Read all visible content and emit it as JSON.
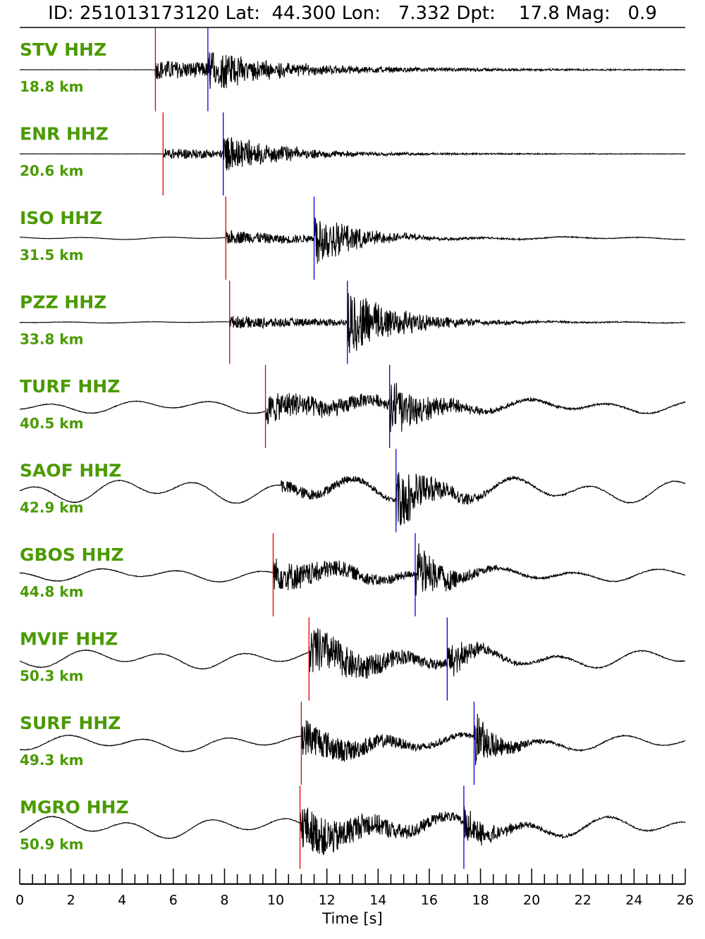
{
  "header": {
    "title": "ID: 251013173120 Lat:  44.300 Lon:   7.332 Dpt:    17.8 Mag:   0.9"
  },
  "chart_data": {
    "type": "line",
    "title": "ID: 251013173120 Lat:  44.300 Lon:   7.332 Dpt:    17.8 Mag:   0.9",
    "event": {
      "id": "251013173120",
      "lat": 44.3,
      "lon": 7.332,
      "depth": 17.8,
      "magnitude": 0.9
    },
    "xlabel": "Time [s]",
    "xlim": [
      0,
      26
    ],
    "x_ticks": [
      0,
      2,
      4,
      6,
      8,
      10,
      12,
      14,
      16,
      18,
      20,
      22,
      24,
      26
    ],
    "x_minor_step": 0.5,
    "p_pick_color": "#e00000",
    "s_pick_color": "#0000e0",
    "label_color": "#4a9a00",
    "series": [
      {
        "name": "STV HHZ",
        "distance": "18.8 km",
        "p_pick": 5.3,
        "s_pick": 7.35
      },
      {
        "name": "ENR HHZ",
        "distance": "20.6 km",
        "p_pick": 5.6,
        "s_pick": 7.95
      },
      {
        "name": "ISO HHZ",
        "distance": "31.5 km",
        "p_pick": 8.05,
        "s_pick": 11.5
      },
      {
        "name": "PZZ HHZ",
        "distance": "33.8 km",
        "p_pick": 8.2,
        "s_pick": 12.8
      },
      {
        "name": "TURF HHZ",
        "distance": "40.5 km",
        "p_pick": 9.6,
        "s_pick": 14.45
      },
      {
        "name": "SAOF HHZ",
        "distance": "42.9 km",
        "p_pick": null,
        "s_pick": 14.7
      },
      {
        "name": "GBOS HHZ",
        "distance": "44.8 km",
        "p_pick": 9.9,
        "s_pick": 15.45
      },
      {
        "name": "MVIF HHZ",
        "distance": "50.3 km",
        "p_pick": 11.3,
        "s_pick": 16.7
      },
      {
        "name": "SURF HHZ",
        "distance": "49.3 km",
        "p_pick": 11.0,
        "s_pick": 17.75
      },
      {
        "name": "MGRO HHZ",
        "distance": "50.9 km",
        "p_pick": 10.95,
        "s_pick": 17.35
      }
    ]
  }
}
